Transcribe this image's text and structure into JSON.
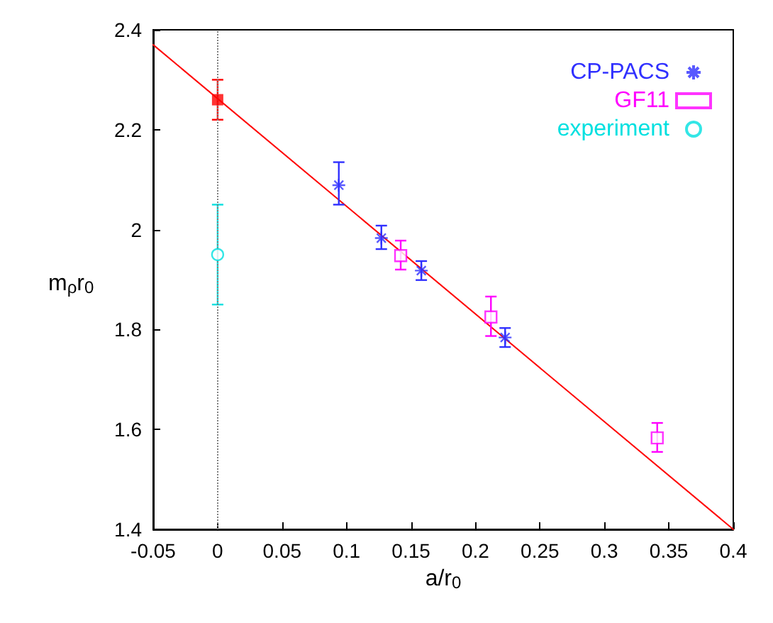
{
  "chart_data": {
    "type": "scatter",
    "xlabel": "a/r$_{0}$",
    "ylabel": "m$_{ρ}$r$_{0}$",
    "xlim": [
      -0.05,
      0.4
    ],
    "xticks": [
      -0.05,
      0,
      0.05,
      0.1,
      0.15,
      0.2,
      0.25,
      0.3,
      0.35,
      0.4
    ],
    "ylim": [
      1.4,
      2.4
    ],
    "yticks": [
      1.4,
      1.6,
      1.8,
      2,
      2.2,
      2.4
    ],
    "grid": false,
    "legend": "top right",
    "ref_lines": [
      {
        "axis": "x",
        "value": 0,
        "color": "#808080",
        "line_style": "dotted"
      }
    ],
    "series": [
      {
        "type": "line",
        "color": "#ff0000",
        "marker": "none",
        "x": [
          -0.05,
          0.4
        ],
        "values": [
          2.37,
          1.4
        ]
      },
      {
        "name": "CP-PACS",
        "color": "#3030ff",
        "marker": "cross",
        "x": [
          0.094,
          0.127,
          0.158,
          0.223
        ],
        "values": [
          2.089,
          1.983,
          1.918,
          1.784
        ],
        "errors": [
          [
            2.05,
            2.135
          ],
          [
            1.961,
            2.008
          ],
          [
            1.899,
            1.937
          ],
          [
            1.765,
            1.803
          ]
        ]
      },
      {
        "name": "GF11",
        "color": "#ff00ff",
        "marker": "square",
        "x": [
          0.142,
          0.212,
          0.341
        ],
        "values": [
          1.948,
          1.825,
          1.583
        ],
        "errors": [
          [
            1.92,
            1.978
          ],
          [
            1.787,
            1.866
          ],
          [
            1.555,
            1.613
          ]
        ]
      },
      {
        "name": "experiment",
        "color": "#00e0e0",
        "marker": "circle",
        "x": [
          0
        ],
        "values": [
          1.95
        ],
        "errors": [
          [
            1.85,
            2.05
          ]
        ]
      },
      {
        "color": "#ff0000",
        "marker": "square",
        "x": [
          0
        ],
        "values": [
          2.26
        ],
        "errors": [
          [
            2.22,
            2.3
          ]
        ]
      }
    ]
  }
}
